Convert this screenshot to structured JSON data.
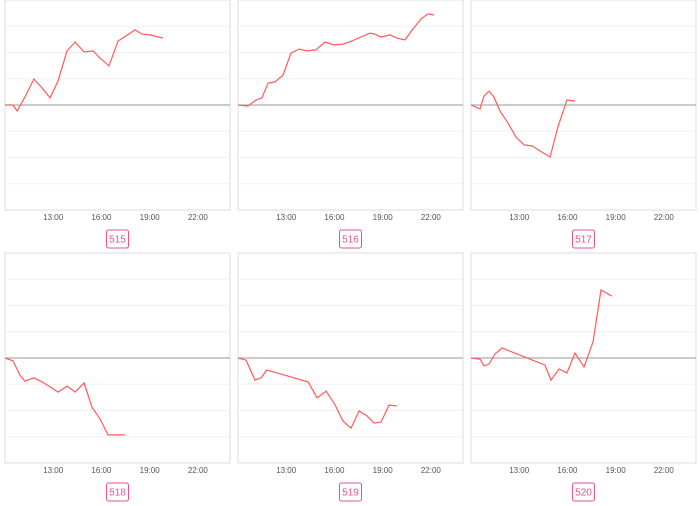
{
  "chart_data": [
    {
      "type": "line",
      "title": "515",
      "color": "#ff5a5a",
      "xlim": [
        10,
        24
      ],
      "ylim": [
        -4,
        4
      ],
      "xticks": [
        {
          "value": 13,
          "label": "13:00"
        },
        {
          "value": 16,
          "label": "16:00"
        },
        {
          "value": 19,
          "label": "19:00"
        },
        {
          "value": 22,
          "label": "22:00"
        }
      ],
      "x": [
        10,
        10.5,
        10.75,
        11.24,
        11.8,
        12.3,
        12.8,
        13.3,
        13.86,
        14.36,
        14.92,
        15.48,
        15.9,
        16.47,
        17.03,
        17.53,
        18.09,
        18.52,
        19.02,
        19.83
      ],
      "values": [
        0,
        0,
        -0.23,
        0.3,
        0.99,
        0.65,
        0.27,
        0.91,
        2.06,
        2.4,
        2.02,
        2.06,
        1.79,
        1.49,
        2.44,
        2.63,
        2.86,
        2.7,
        2.67,
        2.55
      ]
    },
    {
      "type": "line",
      "title": "516",
      "color": "#ff5a5a",
      "xlim": [
        10,
        24
      ],
      "ylim": [
        -4,
        4
      ],
      "xticks": [
        {
          "value": 13,
          "label": "13:00"
        },
        {
          "value": 16,
          "label": "16:00"
        },
        {
          "value": 19,
          "label": "19:00"
        },
        {
          "value": 22,
          "label": "22:00"
        }
      ],
      "x": [
        10,
        10.62,
        11.12,
        11.49,
        11.87,
        12.3,
        12.8,
        13.3,
        13.8,
        14.3,
        14.85,
        15.41,
        15.97,
        16.53,
        17.09,
        17.65,
        18.21,
        18.52,
        18.9,
        19.46,
        19.89,
        20.39,
        20.89,
        21.39,
        21.82,
        22.2
      ],
      "values": [
        0,
        -0.04,
        0.19,
        0.27,
        0.84,
        0.88,
        1.14,
        1.98,
        2.13,
        2.06,
        2.1,
        2.4,
        2.29,
        2.32,
        2.44,
        2.59,
        2.74,
        2.7,
        2.59,
        2.67,
        2.55,
        2.48,
        2.9,
        3.28,
        3.47,
        3.43
      ]
    },
    {
      "type": "line",
      "title": "517",
      "color": "#ff5a5a",
      "xlim": [
        10,
        24
      ],
      "ylim": [
        -4,
        4
      ],
      "xticks": [
        {
          "value": 13,
          "label": "13:00"
        },
        {
          "value": 16,
          "label": "16:00"
        },
        {
          "value": 19,
          "label": "19:00"
        },
        {
          "value": 22,
          "label": "22:00"
        }
      ],
      "x": [
        10,
        10.56,
        10.81,
        11.12,
        11.43,
        11.8,
        12.3,
        12.8,
        13.3,
        13.8,
        14.29,
        14.92,
        15.41,
        15.97,
        16.47
      ],
      "values": [
        0,
        -0.15,
        0.34,
        0.53,
        0.3,
        -0.23,
        -0.69,
        -1.22,
        -1.52,
        -1.56,
        -1.75,
        -1.98,
        -0.84,
        0.19,
        0.15
      ]
    },
    {
      "type": "line",
      "title": "518",
      "color": "#ff5a5a",
      "xlim": [
        10,
        24
      ],
      "ylim": [
        -4,
        4
      ],
      "xticks": [
        {
          "value": 13,
          "label": "13:00"
        },
        {
          "value": 16,
          "label": "16:00"
        },
        {
          "value": 19,
          "label": "19:00"
        },
        {
          "value": 22,
          "label": "22:00"
        }
      ],
      "x": [
        10,
        10.5,
        10.93,
        11.24,
        11.8,
        12.3,
        12.8,
        13.3,
        13.86,
        14.36,
        14.92,
        15.41,
        15.91,
        16.41,
        17.47
      ],
      "values": [
        0,
        -0.11,
        -0.65,
        -0.88,
        -0.76,
        -0.91,
        -1.1,
        -1.3,
        -1.07,
        -1.3,
        -0.95,
        -1.87,
        -2.32,
        -2.93,
        -2.93
      ]
    },
    {
      "type": "line",
      "title": "519",
      "color": "#ff5a5a",
      "xlim": [
        10,
        24
      ],
      "ylim": [
        -4,
        4
      ],
      "xticks": [
        {
          "value": 13,
          "label": "13:00"
        },
        {
          "value": 16,
          "label": "16:00"
        },
        {
          "value": 19,
          "label": "19:00"
        },
        {
          "value": 22,
          "label": "22:00"
        }
      ],
      "x": [
        10,
        10.5,
        11.06,
        11.43,
        11.8,
        14.36,
        14.92,
        15.48,
        16.04,
        16.53,
        17.03,
        17.53,
        18.03,
        18.46,
        18.9,
        19.4,
        19.89
      ],
      "values": [
        0,
        -0.08,
        -0.84,
        -0.76,
        -0.46,
        -0.91,
        -1.52,
        -1.26,
        -1.79,
        -2.4,
        -2.67,
        -2.02,
        -2.21,
        -2.48,
        -2.44,
        -1.79,
        -1.83
      ]
    },
    {
      "type": "line",
      "title": "520",
      "color": "#ff5a5a",
      "xlim": [
        10,
        24
      ],
      "ylim": [
        -4,
        4
      ],
      "xticks": [
        {
          "value": 13,
          "label": "13:00"
        },
        {
          "value": 16,
          "label": "16:00"
        },
        {
          "value": 19,
          "label": "19:00"
        },
        {
          "value": 22,
          "label": "22:00"
        }
      ],
      "x": [
        10,
        10.56,
        10.81,
        11.12,
        11.49,
        11.93,
        14.6,
        14.98,
        15.48,
        15.97,
        16.47,
        17.03,
        17.59,
        18.09,
        18.77
      ],
      "values": [
        0,
        -0.04,
        -0.3,
        -0.23,
        0.15,
        0.38,
        -0.27,
        -0.84,
        -0.42,
        -0.57,
        0.19,
        -0.34,
        0.61,
        2.59,
        2.36
      ]
    }
  ]
}
